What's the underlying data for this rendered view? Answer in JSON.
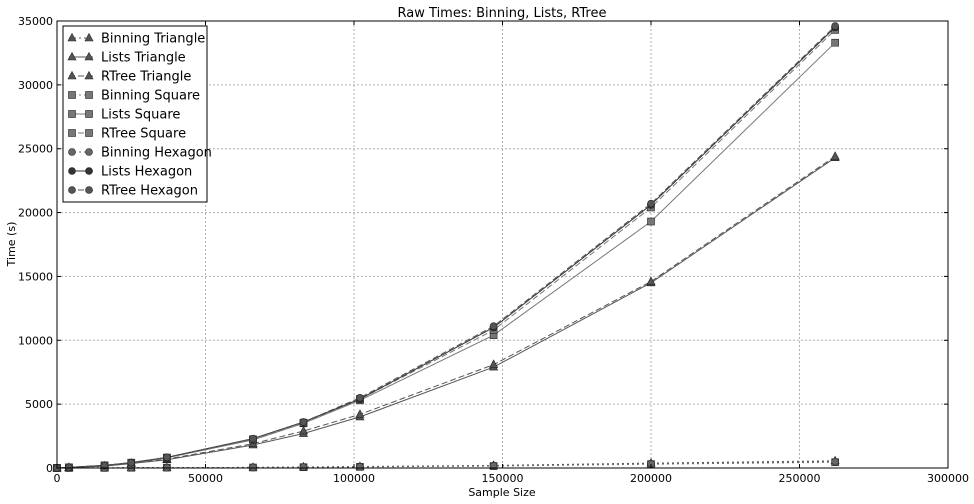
{
  "chart_data": {
    "type": "line",
    "title": "Raw Times: Binning, Lists, RTree",
    "xlabel": "Sample Size",
    "ylabel": "Time (s)",
    "xlim": [
      0,
      300000
    ],
    "ylim": [
      0,
      35000
    ],
    "xticks": [
      0,
      50000,
      100000,
      150000,
      200000,
      250000,
      300000
    ],
    "yticks": [
      0,
      5000,
      10000,
      15000,
      20000,
      25000,
      30000,
      35000
    ],
    "grid": true,
    "legend_position": "top-left",
    "series": [
      {
        "name": "Binning Triangle",
        "marker": "triangle",
        "linestyle": "dotted",
        "color": "#555555",
        "x": [
          0,
          4000,
          16000,
          25000,
          37000,
          66000,
          83000,
          102000,
          147000,
          200000,
          262000
        ],
        "y": [
          0,
          5,
          10,
          20,
          30,
          50,
          80,
          120,
          200,
          380,
          560
        ]
      },
      {
        "name": "Lists Triangle",
        "marker": "triangle",
        "linestyle": "solid",
        "color": "#555555",
        "x": [
          0,
          4000,
          16000,
          25000,
          37000,
          66000,
          83000,
          102000,
          147000,
          200000,
          262000
        ],
        "y": [
          0,
          40,
          150,
          350,
          650,
          1800,
          2700,
          4000,
          7900,
          14500,
          24300
        ]
      },
      {
        "name": "RTree Triangle",
        "marker": "triangle",
        "linestyle": "dashed",
        "color": "#555555",
        "x": [
          0,
          4000,
          16000,
          25000,
          37000,
          66000,
          83000,
          102000,
          147000,
          200000,
          262000
        ],
        "y": [
          0,
          40,
          160,
          380,
          700,
          1900,
          2900,
          4200,
          8100,
          14600,
          24400
        ]
      },
      {
        "name": "Binning Square",
        "marker": "square",
        "linestyle": "dotted",
        "color": "#777777",
        "x": [
          0,
          4000,
          16000,
          25000,
          37000,
          66000,
          83000,
          102000,
          147000,
          200000,
          262000
        ],
        "y": [
          0,
          5,
          10,
          20,
          30,
          40,
          60,
          90,
          150,
          300,
          450
        ]
      },
      {
        "name": "Lists Square",
        "marker": "square",
        "linestyle": "solid",
        "color": "#777777",
        "x": [
          0,
          4000,
          16000,
          25000,
          37000,
          66000,
          83000,
          102000,
          147000,
          200000,
          262000
        ],
        "y": [
          0,
          50,
          200,
          400,
          800,
          2200,
          3500,
          5300,
          10400,
          19300,
          33300
        ]
      },
      {
        "name": "RTree Square",
        "marker": "square",
        "linestyle": "dashed",
        "color": "#777777",
        "x": [
          0,
          4000,
          16000,
          25000,
          37000,
          66000,
          83000,
          102000,
          147000,
          200000,
          262000
        ],
        "y": [
          0,
          50,
          200,
          420,
          820,
          2250,
          3550,
          5400,
          10800,
          20400,
          34300
        ]
      },
      {
        "name": "Binning Hexagon",
        "marker": "circle",
        "linestyle": "dotted",
        "color": "#666666",
        "x": [
          0,
          4000,
          16000,
          25000,
          37000,
          66000,
          83000,
          102000,
          147000,
          200000,
          262000
        ],
        "y": [
          0,
          5,
          10,
          20,
          30,
          45,
          70,
          100,
          180,
          340,
          500
        ]
      },
      {
        "name": "Lists Hexagon",
        "marker": "circle",
        "linestyle": "solid",
        "color": "#333333",
        "x": [
          0,
          4000,
          16000,
          25000,
          37000,
          66000,
          83000,
          102000,
          147000,
          200000,
          262000
        ],
        "y": [
          0,
          50,
          200,
          420,
          830,
          2300,
          3600,
          5400,
          11000,
          20600,
          34500
        ]
      },
      {
        "name": "RTree Hexagon",
        "marker": "circle",
        "linestyle": "dashed",
        "color": "#555555",
        "x": [
          0,
          4000,
          16000,
          25000,
          37000,
          66000,
          83000,
          102000,
          147000,
          200000,
          262000
        ],
        "y": [
          0,
          50,
          200,
          420,
          840,
          2300,
          3600,
          5500,
          11100,
          20700,
          34600
        ]
      }
    ]
  }
}
